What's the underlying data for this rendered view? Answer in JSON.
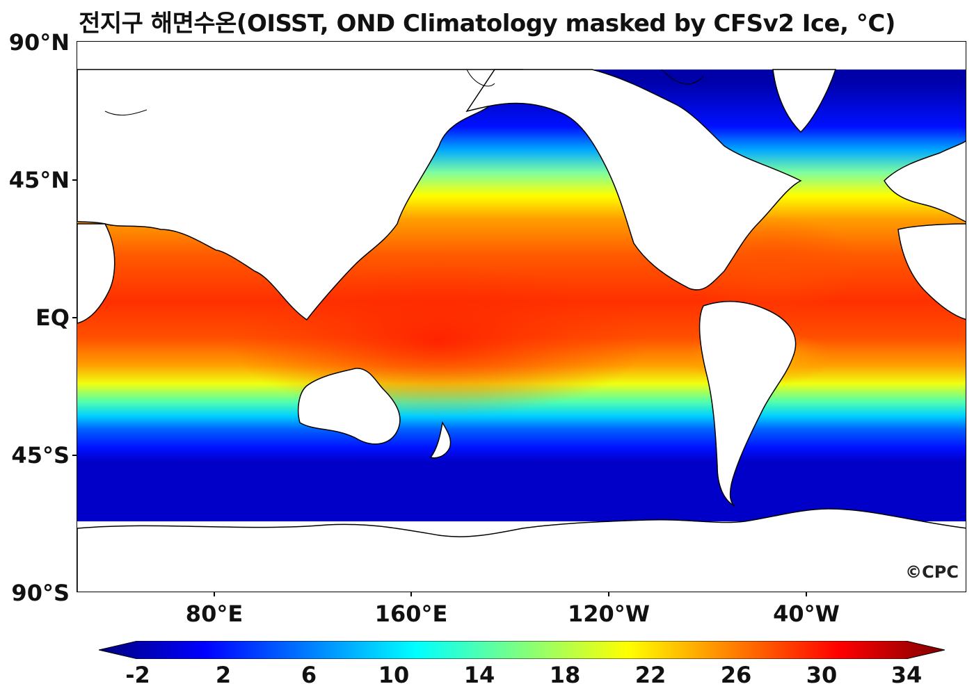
{
  "title": "전지구 해면수온(OISST, OND Climatology masked by CFSv2 Ice, °C)",
  "lat_labels": [
    "90°N",
    "45°N",
    "EQ",
    "45°S",
    "90°S"
  ],
  "lon_labels": [
    "80°E",
    "160°E",
    "120°W",
    "40°W"
  ],
  "colorbar": {
    "ticks": [
      "-2",
      "2",
      "6",
      "10",
      "14",
      "18",
      "22",
      "26",
      "30",
      "34"
    ],
    "min": -2,
    "max": 34,
    "colors": [
      "#00007f",
      "#0000ff",
      "#007fff",
      "#00ffff",
      "#7fff7f",
      "#ffff00",
      "#ff7f00",
      "#ff0000",
      "#7f0000"
    ]
  },
  "logo": "©CPC",
  "colors": {
    "land": "#ffffff",
    "coastline": "#000000"
  }
}
